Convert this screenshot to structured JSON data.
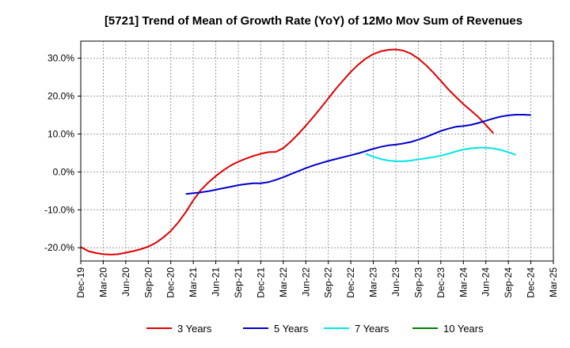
{
  "chart_data": {
    "type": "line",
    "title": "[5721]  Trend of Mean of Growth Rate (YoY) of 12Mo Mov Sum of Revenues",
    "xlabel": "",
    "ylabel": "",
    "ylim": [
      -23.5,
      34.5
    ],
    "y_ticks": [
      {
        "value": 30,
        "label": "30.0%"
      },
      {
        "value": 20,
        "label": "20.0%"
      },
      {
        "value": 10,
        "label": "10.0%"
      },
      {
        "value": 0,
        "label": "0.0%"
      },
      {
        "value": -10,
        "label": "-10.0%"
      },
      {
        "value": -20,
        "label": "-20.0%"
      }
    ],
    "x_start": "Dec-19",
    "x_ticks": [
      "Dec-19",
      "Mar-20",
      "Jun-20",
      "Sep-20",
      "Dec-20",
      "Mar-21",
      "Jun-21",
      "Sep-21",
      "Dec-21",
      "Mar-22",
      "Jun-22",
      "Sep-22",
      "Dec-22",
      "Mar-23",
      "Jun-23",
      "Sep-23",
      "Dec-23",
      "Mar-24",
      "Jun-24",
      "Sep-24",
      "Dec-24",
      "Mar-25"
    ],
    "grid": true,
    "legend_position": "bottom",
    "series": [
      {
        "name": "3 Years",
        "color": "#e00000",
        "start_index": 0,
        "values": [
          -19.8,
          -20.9,
          -21.4,
          -21.7,
          -21.8,
          -21.7,
          -21.3,
          -20.9,
          -20.4,
          -19.7,
          -18.7,
          -17.3,
          -15.6,
          -13.3,
          -10.6,
          -7.5,
          -4.8,
          -2.8,
          -1.1,
          0.4,
          1.7,
          2.7,
          3.5,
          4.2,
          4.8,
          5.2,
          5.3,
          6.3,
          8.0,
          10.0,
          12.2,
          14.5,
          16.9,
          19.4,
          21.9,
          24.2,
          26.4,
          28.3,
          29.9,
          31.1,
          31.8,
          32.2,
          32.3,
          32.0,
          31.2,
          29.9,
          28.2,
          26.2,
          24.0,
          21.8,
          19.8,
          17.9,
          16.2,
          14.5,
          12.4,
          10.2
        ]
      },
      {
        "name": "5 Years",
        "color": "#0000cc",
        "start_index": 14,
        "values": [
          -5.8,
          -5.6,
          -5.4,
          -5.1,
          -4.7,
          -4.3,
          -3.9,
          -3.5,
          -3.2,
          -3.0,
          -3.0,
          -2.7,
          -2.1,
          -1.4,
          -0.6,
          0.2,
          1.0,
          1.7,
          2.3,
          2.9,
          3.4,
          3.9,
          4.4,
          4.9,
          5.5,
          6.1,
          6.6,
          7.0,
          7.2,
          7.5,
          7.9,
          8.5,
          9.2,
          10.0,
          10.8,
          11.4,
          11.9,
          12.1,
          12.4,
          12.9,
          13.5,
          14.1,
          14.6,
          14.9,
          15.1,
          15.1,
          15.0
        ]
      },
      {
        "name": "7 Years",
        "color": "#00e5e5",
        "start_index": 38,
        "values": [
          4.8,
          4.0,
          3.4,
          3.0,
          2.8,
          2.8,
          3.0,
          3.3,
          3.6,
          3.9,
          4.3,
          4.8,
          5.4,
          5.9,
          6.2,
          6.4,
          6.4,
          6.2,
          5.8,
          5.2,
          4.5
        ]
      },
      {
        "name": "10 Years",
        "color": "#008000",
        "start_index": 0,
        "values": []
      }
    ]
  }
}
